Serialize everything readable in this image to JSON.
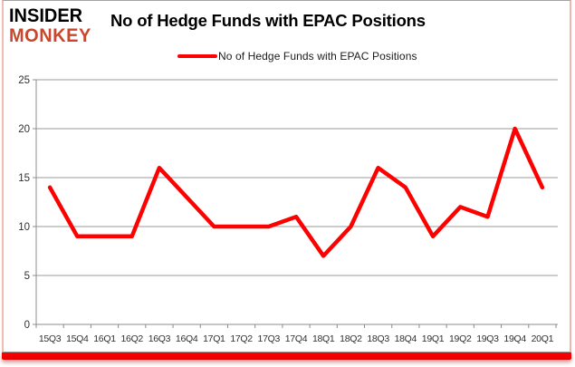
{
  "logo": {
    "line1": "INSIDER",
    "line2": "MONKEY",
    "line2_color": "#c9472f"
  },
  "header": {
    "title": "No of Hedge Funds with EPAC Positions"
  },
  "legend": {
    "label": "No of Hedge Funds with EPAC Positions",
    "swatch_color": "#fe0000"
  },
  "chart_data": {
    "type": "line",
    "categories": [
      "15Q3",
      "15Q4",
      "16Q1",
      "16Q2",
      "16Q3",
      "16Q4",
      "17Q1",
      "17Q2",
      "17Q3",
      "17Q4",
      "18Q1",
      "18Q2",
      "18Q3",
      "18Q4",
      "19Q1",
      "19Q2",
      "19Q3",
      "19Q4",
      "20Q1"
    ],
    "series": [
      {
        "name": "No of Hedge Funds with EPAC Positions",
        "values": [
          14,
          9,
          9,
          9,
          16,
          13,
          10,
          10,
          10,
          11,
          7,
          10,
          16,
          14,
          9,
          12,
          11,
          20,
          14
        ],
        "color": "#fe0000"
      }
    ],
    "title": "No of Hedge Funds with EPAC Positions",
    "xlabel": "",
    "ylabel": "",
    "ylim": [
      0,
      25
    ],
    "yticks": [
      0,
      5,
      10,
      15,
      20,
      25
    ],
    "grid": true,
    "legend_position": "top-center",
    "colors": {
      "gridline": "#9b9b9b",
      "axis": "#8c8c8c",
      "tick_label": "#303030"
    }
  }
}
